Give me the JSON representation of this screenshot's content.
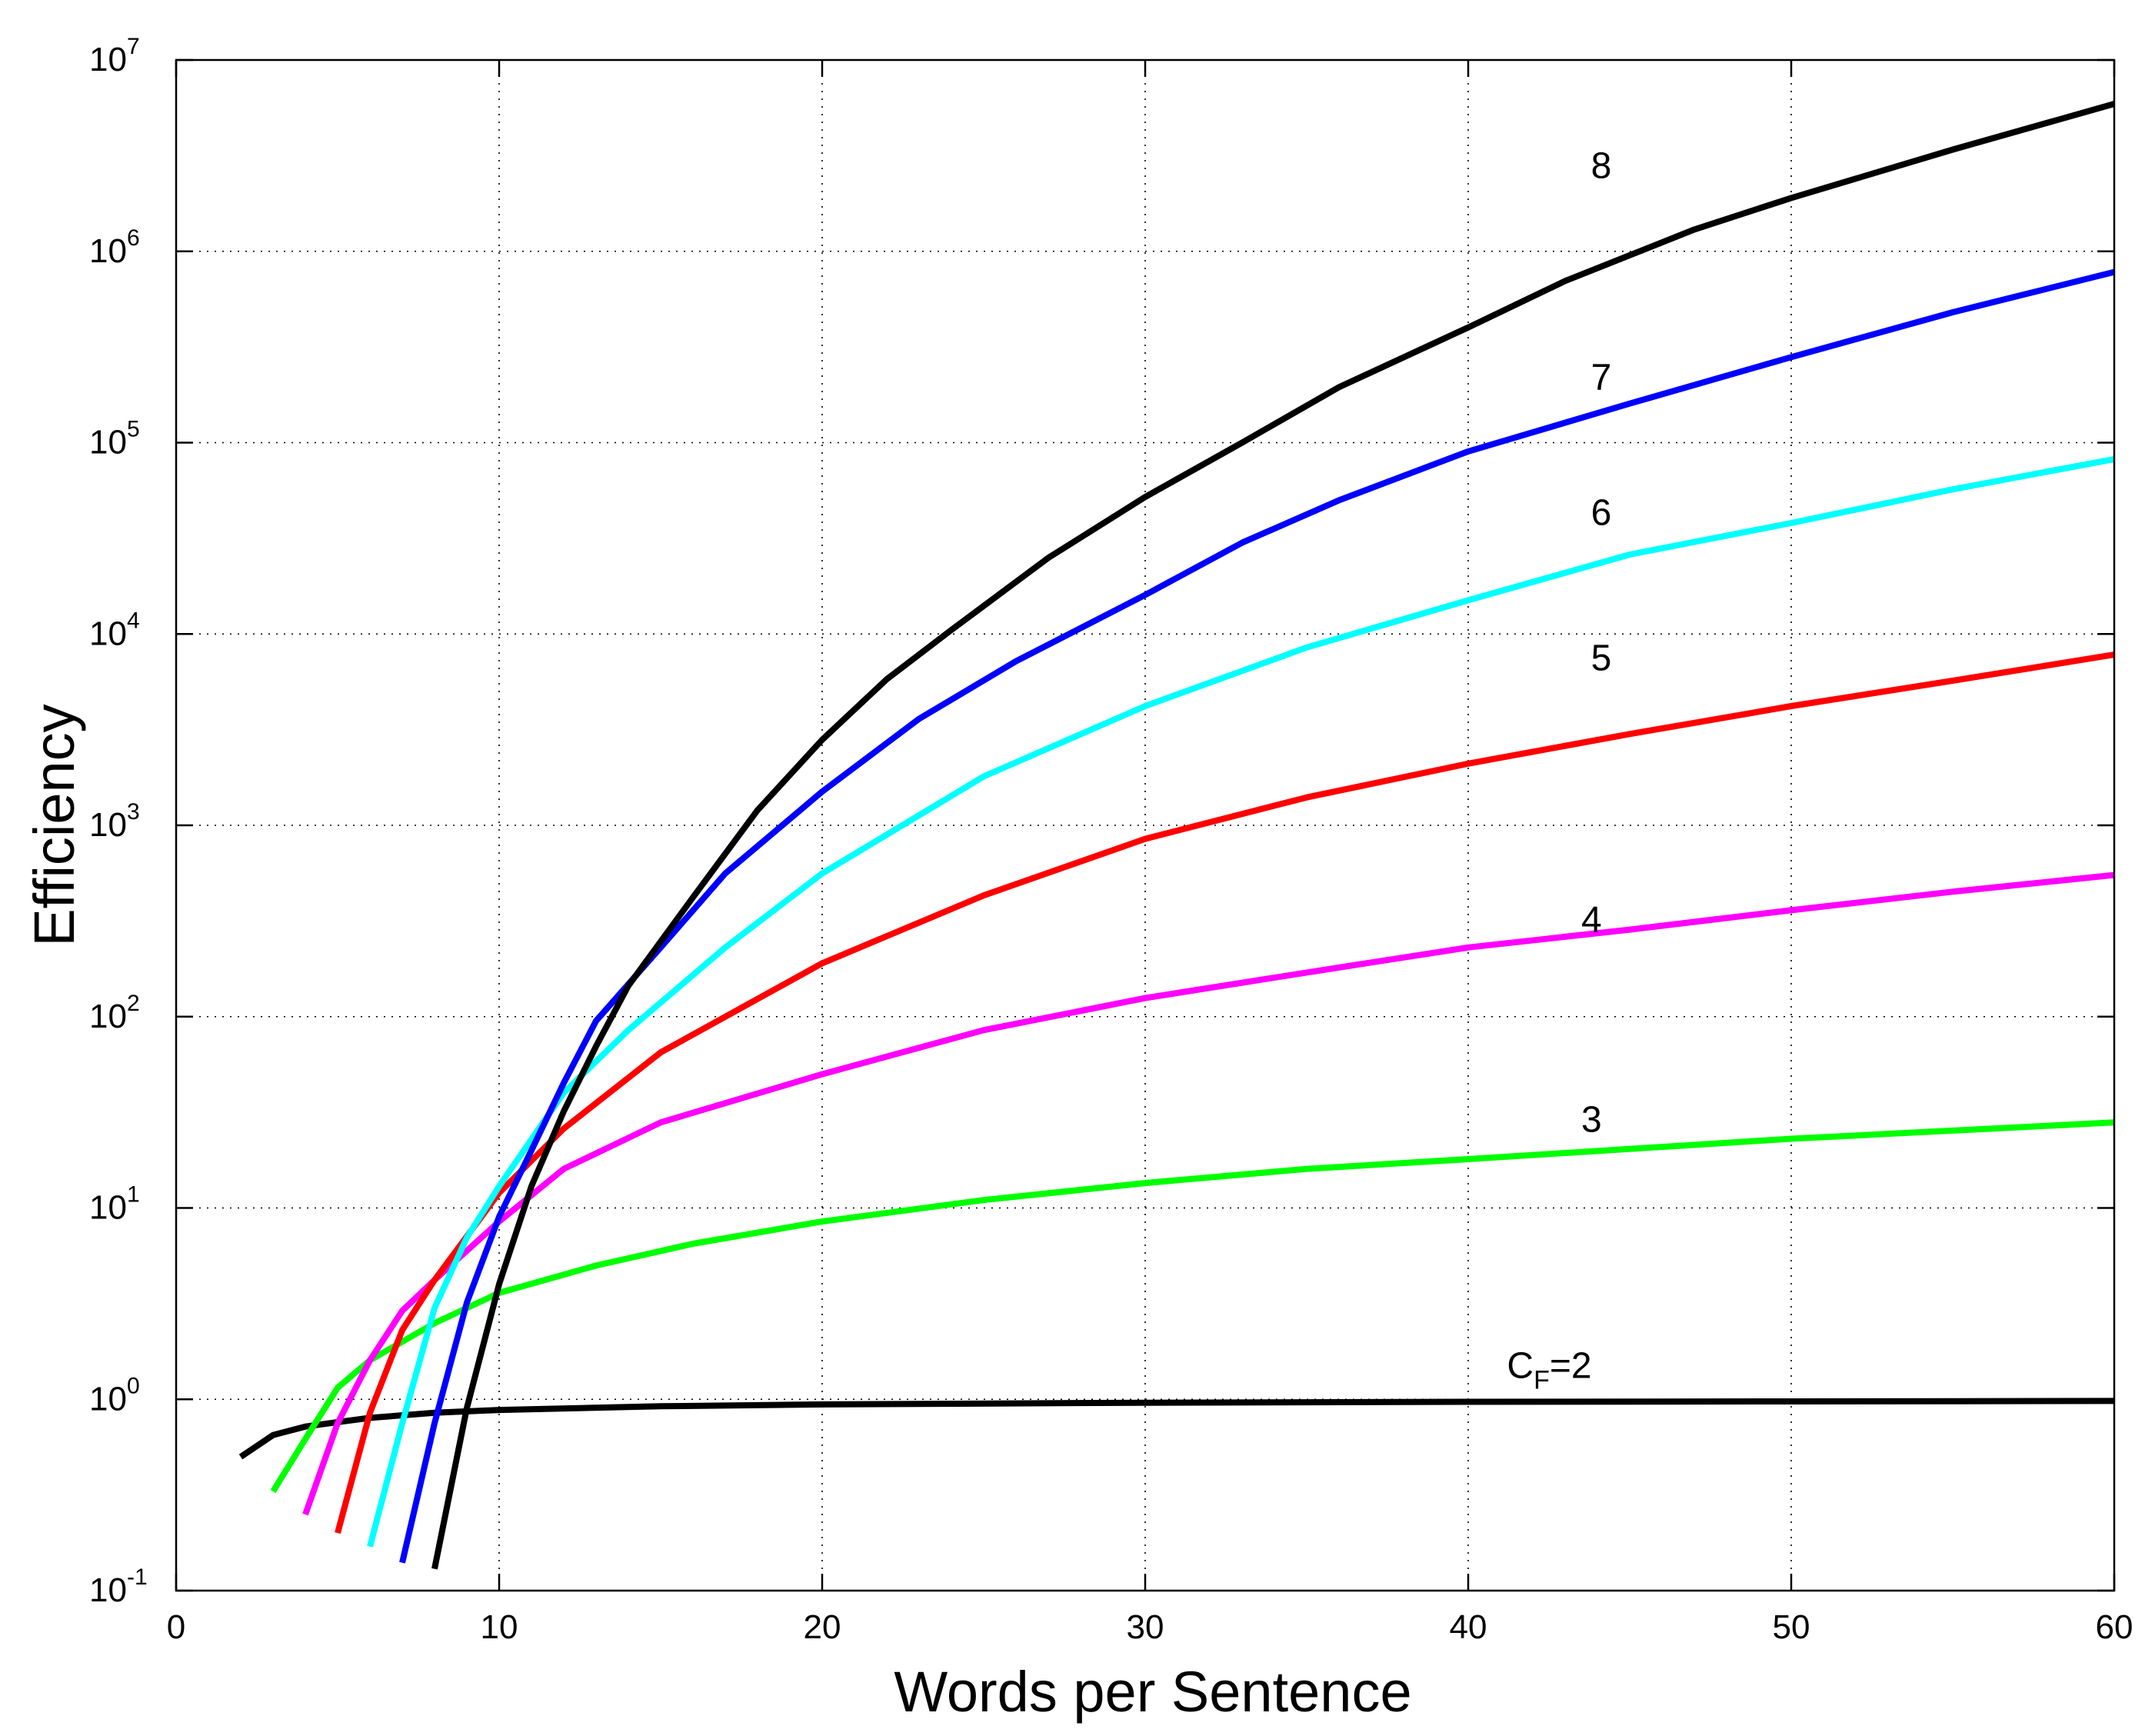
{
  "chart_data": {
    "type": "line",
    "xlabel": "Words per Sentence",
    "ylabel": "Efficiency",
    "xlim": [
      0,
      60
    ],
    "ylim": [
      0.1,
      10000000
    ],
    "y_scale": "log",
    "grid": true,
    "x_ticks": [
      "0",
      "10",
      "20",
      "30",
      "40",
      "50",
      "60"
    ],
    "y_ticks": [
      {
        "base": "10",
        "exp": "-1"
      },
      {
        "base": "10",
        "exp": "0"
      },
      {
        "base": "10",
        "exp": "1"
      },
      {
        "base": "10",
        "exp": "2"
      },
      {
        "base": "10",
        "exp": "3"
      },
      {
        "base": "10",
        "exp": "4"
      },
      {
        "base": "10",
        "exp": "5"
      },
      {
        "base": "10",
        "exp": "6"
      },
      {
        "base": "10",
        "exp": "7"
      }
    ],
    "annotations": [
      {
        "text": "8",
        "x": 43.8,
        "y": 2800000
      },
      {
        "text": "7",
        "x": 43.8,
        "y": 220000
      },
      {
        "text": "6",
        "x": 43.8,
        "y": 43000
      },
      {
        "text": "5",
        "x": 43.8,
        "y": 7500
      },
      {
        "text": "4",
        "x": 43.5,
        "y": 320
      },
      {
        "text": "3",
        "x": 43.5,
        "y": 29
      },
      {
        "main": "C",
        "sub": "F",
        "suffix": "=2",
        "x": 41.2,
        "y": 1.5
      }
    ],
    "series": [
      {
        "color": "#000000",
        "x": [
          2,
          3,
          4,
          5,
          6,
          8,
          10,
          15,
          20,
          30,
          40,
          50,
          60
        ],
        "y": [
          0.5,
          0.65,
          0.72,
          0.76,
          0.8,
          0.85,
          0.88,
          0.92,
          0.94,
          0.96,
          0.97,
          0.975,
          0.98
        ]
      },
      {
        "color": "#00ff00",
        "x": [
          3,
          4,
          5,
          6,
          8,
          10,
          13,
          16,
          20,
          25,
          30,
          35,
          40,
          50,
          60
        ],
        "y": [
          0.33,
          0.62,
          1.15,
          1.6,
          2.5,
          3.6,
          5.0,
          6.5,
          8.5,
          11,
          13.5,
          16,
          18,
          23,
          28
        ]
      },
      {
        "color": "#ff00ff",
        "x": [
          4,
          5,
          6,
          7,
          8,
          10,
          12,
          15,
          20,
          25,
          30,
          35,
          40,
          45,
          50,
          55,
          60
        ],
        "y": [
          0.25,
          0.75,
          1.6,
          2.9,
          4.2,
          8.5,
          16,
          28,
          50,
          85,
          125,
          170,
          230,
          285,
          360,
          450,
          550
        ]
      },
      {
        "color": "#ff0000",
        "x": [
          5,
          6,
          7,
          8,
          10,
          12,
          15,
          20,
          25,
          30,
          35,
          40,
          45,
          50,
          55,
          60
        ],
        "y": [
          0.2,
          0.85,
          2.3,
          4.2,
          12,
          26,
          65,
          190,
          430,
          850,
          1400,
          2100,
          3000,
          4200,
          5700,
          7800
        ]
      },
      {
        "color": "#00ffff",
        "x": [
          6,
          7,
          8,
          9,
          10,
          12,
          14,
          17,
          20,
          25,
          30,
          35,
          40,
          45,
          50,
          55,
          60
        ],
        "y": [
          0.17,
          0.75,
          3.0,
          7.0,
          13,
          40,
          85,
          230,
          560,
          1800,
          4200,
          8500,
          15000,
          26000,
          38000,
          57000,
          82000
        ]
      },
      {
        "color": "#0000ff",
        "x": [
          7,
          8,
          9,
          10,
          11,
          12,
          13,
          15,
          17,
          20,
          23,
          26,
          30,
          33,
          36,
          40,
          45,
          50,
          55,
          60
        ],
        "y": [
          0.14,
          0.75,
          3.2,
          9.0,
          20,
          45,
          95,
          230,
          560,
          1500,
          3600,
          7200,
          16000,
          30000,
          50000,
          90000,
          160000,
          280000,
          480000,
          780000
        ]
      },
      {
        "color": "#000000",
        "x": [
          8,
          9,
          10,
          11,
          12,
          13,
          14,
          16,
          18,
          20,
          22,
          24,
          27,
          30,
          33,
          36,
          40,
          43,
          47,
          50,
          55,
          60
        ],
        "y": [
          0.13,
          0.9,
          4.0,
          13,
          32,
          70,
          145,
          420,
          1200,
          2800,
          5800,
          10500,
          25000,
          52000,
          100000,
          195000,
          400000,
          700000,
          1300000,
          1900000,
          3400000,
          5900000
        ]
      }
    ]
  }
}
